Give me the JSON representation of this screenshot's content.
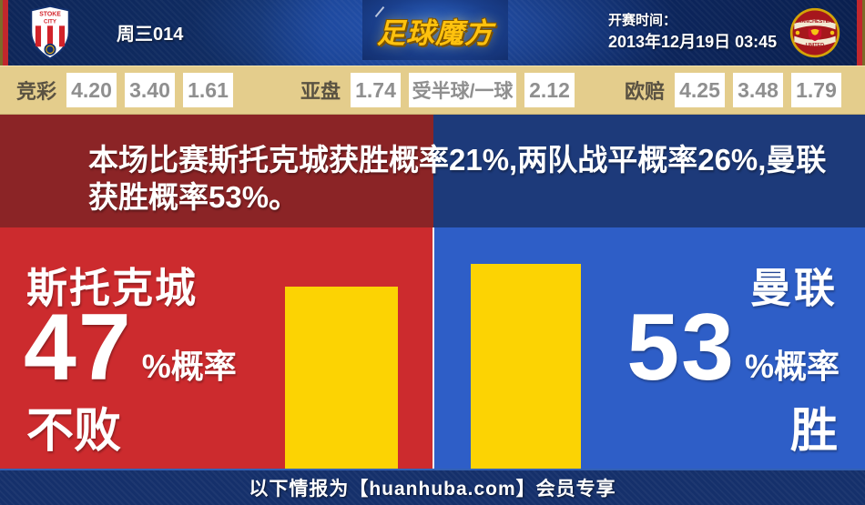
{
  "header": {
    "match_code": "周三014",
    "logo": "足球魔方",
    "kickoff_label": "开赛时间：",
    "kickoff_datetime": "2013年12月19日 03:45",
    "home_crest_line1": "STOKE",
    "home_crest_line2": "CITY",
    "away_crest_line1": "MANCHESTER",
    "away_crest_line2": "UNITED"
  },
  "odds": {
    "groups": [
      {
        "label": "竞彩",
        "values": [
          "4.20",
          "3.40",
          "1.61"
        ]
      },
      {
        "label": "亚盘",
        "values": [
          "1.74",
          "受半球/一球",
          "2.12"
        ]
      },
      {
        "label": "欧赔",
        "values": [
          "4.25",
          "3.48",
          "1.79"
        ]
      }
    ]
  },
  "summary": {
    "line1": "本场比赛斯托克城获胜概率21%,两队战平概率26%,曼联",
    "line2": "获胜概率53%。"
  },
  "home": {
    "name": "斯托克城",
    "percent": "47",
    "percent_suffix": "%概率",
    "outcome": "不败"
  },
  "away": {
    "name": "曼联",
    "percent": "53",
    "percent_suffix": "%概率",
    "outcome": "胜"
  },
  "footer": {
    "text": "以下情报为【huanhuba.com】会员专享"
  },
  "colors": {
    "header_navy": "#102d63",
    "edge_red": "#c1272d",
    "edge_gold": "#7d6b28",
    "odds_bg": "#e4cd8c",
    "band_red": "#8b2426",
    "band_blue": "#1d3a7a",
    "main_red": "#cc2b2e",
    "main_blue": "#2e5ec7",
    "bar_yellow": "#fcd303",
    "footer_navy": "#15306b"
  },
  "chart_data": {
    "type": "bar",
    "categories": [
      "斯托克城 不败",
      "曼联 胜"
    ],
    "values": [
      47,
      53
    ],
    "probabilities": {
      "home_win": 21,
      "draw": 26,
      "away_win": 53
    },
    "ylim": [
      0,
      62
    ],
    "bar_color": "#fcd303"
  }
}
